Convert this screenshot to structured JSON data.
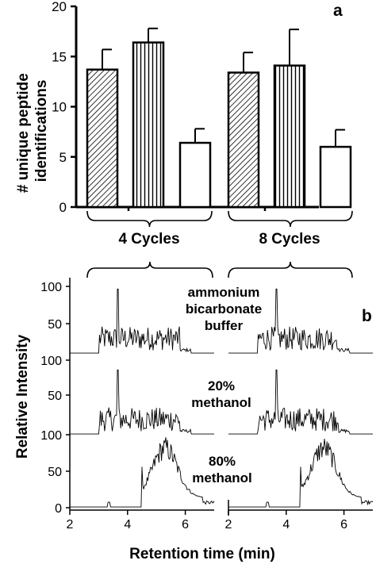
{
  "chart_data": [
    {
      "panel_label": "a",
      "type": "bar",
      "ylabel": "# unique peptide identifications",
      "ylim": [
        0,
        20
      ],
      "yticks": [
        0,
        5,
        10,
        15,
        20
      ],
      "groups": [
        "4 Cycles",
        "8 Cycles"
      ],
      "bars": [
        {
          "group": "4 Cycles",
          "pattern": "diagonal-hatch",
          "value": 13.7,
          "error": 2.0
        },
        {
          "group": "4 Cycles",
          "pattern": "vertical-hatch",
          "value": 16.4,
          "error": 1.4
        },
        {
          "group": "4 Cycles",
          "pattern": "open",
          "value": 6.4,
          "error": 1.4
        },
        {
          "group": "8 Cycles",
          "pattern": "diagonal-hatch",
          "value": 13.4,
          "error": 2.0
        },
        {
          "group": "8 Cycles",
          "pattern": "vertical-hatch",
          "value": 14.1,
          "error": 3.6
        },
        {
          "group": "8 Cycles",
          "pattern": "open",
          "value": 6.0,
          "error": 1.7
        }
      ]
    },
    {
      "panel_label": "b",
      "type": "line",
      "ylabel": "Relative Intensity",
      "xlabel": "Retention time (min)",
      "xlim": [
        2,
        7
      ],
      "xticks": [
        2,
        4,
        6
      ],
      "yticks": [
        0,
        50,
        100
      ],
      "rows": [
        {
          "label_lines": [
            "ammonium",
            "bicarbonate",
            "buffer"
          ]
        },
        {
          "label_lines": [
            "20%",
            "methanol"
          ]
        },
        {
          "label_lines": [
            "80%",
            "methanol"
          ]
        }
      ]
    }
  ]
}
